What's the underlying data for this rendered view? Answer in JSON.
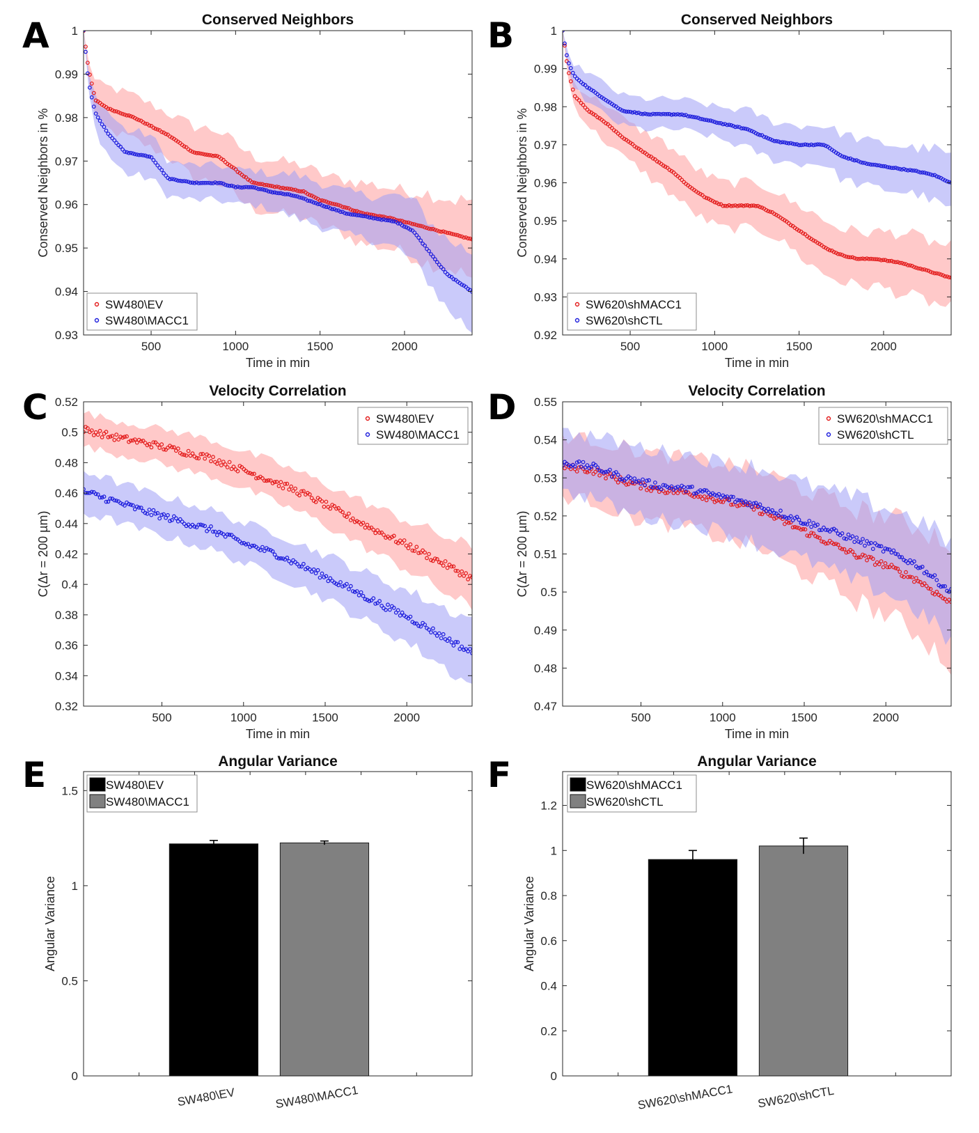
{
  "chart_data": [
    {
      "id": "A",
      "type": "scatter",
      "panel_letter": "A",
      "title": "Conserved Neighbors",
      "xlabel": "Time in min",
      "ylabel": "Conserved Neighbors in %",
      "xlim": [
        100,
        2400
      ],
      "ylim": [
        0.93,
        1.0
      ],
      "xticks": [
        500,
        1000,
        1500,
        2000
      ],
      "yticks": [
        0.93,
        0.94,
        0.95,
        0.96,
        0.97,
        0.98,
        0.99,
        1
      ],
      "ytick_labels": [
        "0.93",
        "0.94",
        "0.95",
        "0.96",
        "0.97",
        "0.98",
        "0.99",
        "1"
      ],
      "legend_position": "bottom-left",
      "series": [
        {
          "name": "SW480\\EV",
          "color": "#e31a1a",
          "band_color": "#ff9c9c",
          "x": [
            100,
            130,
            170,
            250,
            400,
            600,
            750,
            900,
            1000,
            1100,
            1250,
            1400,
            1500,
            1600,
            1750,
            1900,
            2000,
            2100,
            2200,
            2300,
            2400
          ],
          "y": [
            1.0,
            0.991,
            0.984,
            0.982,
            0.98,
            0.976,
            0.972,
            0.971,
            0.968,
            0.965,
            0.964,
            0.963,
            0.961,
            0.96,
            0.958,
            0.957,
            0.956,
            0.955,
            0.954,
            0.953,
            0.952
          ],
          "err": [
            0.0,
            0.002,
            0.004,
            0.005,
            0.005,
            0.005,
            0.006,
            0.006,
            0.006,
            0.006,
            0.006,
            0.006,
            0.006,
            0.006,
            0.007,
            0.007,
            0.007,
            0.008,
            0.008,
            0.008,
            0.009
          ]
        },
        {
          "name": "SW480\\MACC1",
          "color": "#1a1adc",
          "band_color": "#9e9ef5",
          "x": [
            100,
            130,
            170,
            250,
            350,
            500,
            600,
            750,
            900,
            1000,
            1100,
            1200,
            1350,
            1500,
            1650,
            1800,
            1950,
            2050,
            2150,
            2250,
            2400
          ],
          "y": [
            1.0,
            0.988,
            0.981,
            0.976,
            0.972,
            0.971,
            0.966,
            0.965,
            0.965,
            0.964,
            0.964,
            0.963,
            0.962,
            0.96,
            0.958,
            0.957,
            0.956,
            0.954,
            0.949,
            0.944,
            0.94
          ],
          "err": [
            0.0,
            0.002,
            0.004,
            0.005,
            0.005,
            0.005,
            0.004,
            0.004,
            0.004,
            0.004,
            0.004,
            0.004,
            0.005,
            0.005,
            0.005,
            0.005,
            0.006,
            0.007,
            0.007,
            0.008,
            0.009
          ]
        }
      ]
    },
    {
      "id": "B",
      "type": "scatter",
      "panel_letter": "B",
      "title": "Conserved Neighbors",
      "xlabel": "Time in min",
      "ylabel": "Conserved Neighbors in %",
      "xlim": [
        100,
        2400
      ],
      "ylim": [
        0.92,
        1.0
      ],
      "xticks": [
        500,
        1000,
        1500,
        2000
      ],
      "yticks": [
        0.92,
        0.93,
        0.94,
        0.95,
        0.96,
        0.97,
        0.98,
        0.99,
        1
      ],
      "ytick_labels": [
        "0.92",
        "0.93",
        "0.94",
        "0.95",
        "0.96",
        "0.97",
        "0.98",
        "0.99",
        "1"
      ],
      "legend_position": "bottom-left",
      "series": [
        {
          "name": "SW620\\shMACC1",
          "color": "#e31a1a",
          "band_color": "#ff9c9c",
          "x": [
            100,
            130,
            170,
            250,
            350,
            450,
            550,
            650,
            750,
            850,
            950,
            1050,
            1150,
            1250,
            1350,
            1450,
            1550,
            1650,
            1750,
            1850,
            1950,
            2100,
            2250,
            2400
          ],
          "y": [
            1.0,
            0.99,
            0.983,
            0.979,
            0.976,
            0.972,
            0.969,
            0.966,
            0.963,
            0.959,
            0.956,
            0.954,
            0.954,
            0.954,
            0.952,
            0.949,
            0.946,
            0.943,
            0.941,
            0.94,
            0.94,
            0.939,
            0.937,
            0.935
          ],
          "err": [
            0.0,
            0.002,
            0.003,
            0.004,
            0.005,
            0.005,
            0.005,
            0.006,
            0.006,
            0.006,
            0.006,
            0.006,
            0.006,
            0.006,
            0.006,
            0.006,
            0.007,
            0.007,
            0.007,
            0.007,
            0.007,
            0.008,
            0.008,
            0.008
          ]
        },
        {
          "name": "SW620\\shCTL",
          "color": "#1a1adc",
          "band_color": "#9e9ef5",
          "x": [
            100,
            130,
            170,
            250,
            350,
            450,
            600,
            800,
            1000,
            1200,
            1350,
            1500,
            1650,
            1750,
            1900,
            2050,
            2200,
            2300,
            2400
          ],
          "y": [
            1.0,
            0.992,
            0.988,
            0.985,
            0.982,
            0.979,
            0.978,
            0.978,
            0.976,
            0.974,
            0.971,
            0.97,
            0.97,
            0.967,
            0.965,
            0.964,
            0.963,
            0.962,
            0.96
          ],
          "err": [
            0.0,
            0.002,
            0.003,
            0.004,
            0.004,
            0.004,
            0.004,
            0.004,
            0.004,
            0.005,
            0.005,
            0.005,
            0.005,
            0.006,
            0.006,
            0.006,
            0.006,
            0.007,
            0.007
          ]
        }
      ]
    },
    {
      "id": "C",
      "type": "scatter",
      "panel_letter": "C",
      "title": "Velocity Correlation",
      "xlabel": "Time in min",
      "ylabel": "C(Δr = 200 µm)",
      "xlim": [
        20,
        2400
      ],
      "ylim": [
        0.32,
        0.52
      ],
      "xticks": [
        500,
        1000,
        1500,
        2000
      ],
      "yticks": [
        0.32,
        0.34,
        0.36,
        0.38,
        0.4,
        0.42,
        0.44,
        0.46,
        0.48,
        0.5,
        0.52
      ],
      "ytick_labels": [
        "0.32",
        "0.34",
        "0.36",
        "0.38",
        "0.4",
        "0.42",
        "0.44",
        "0.46",
        "0.48",
        "0.5",
        "0.52"
      ],
      "legend_position": "top-right",
      "series": [
        {
          "name": "SW480\\EV",
          "color": "#e31a1a",
          "band_color": "#ff9c9c",
          "x": [
            20,
            200,
            400,
            600,
            800,
            1000,
            1200,
            1400,
            1600,
            1800,
            2000,
            2200,
            2400
          ],
          "y": [
            0.502,
            0.497,
            0.493,
            0.488,
            0.483,
            0.475,
            0.467,
            0.458,
            0.447,
            0.436,
            0.426,
            0.415,
            0.404
          ],
          "err": [
            0.011,
            0.011,
            0.011,
            0.012,
            0.012,
            0.012,
            0.013,
            0.013,
            0.014,
            0.015,
            0.016,
            0.018,
            0.02
          ]
        },
        {
          "name": "SW480\\MACC1",
          "color": "#1a1adc",
          "band_color": "#9e9ef5",
          "x": [
            20,
            200,
            400,
            600,
            800,
            1000,
            1200,
            1400,
            1600,
            1800,
            2000,
            2200,
            2400
          ],
          "y": [
            0.461,
            0.455,
            0.448,
            0.442,
            0.436,
            0.427,
            0.42,
            0.41,
            0.4,
            0.389,
            0.379,
            0.367,
            0.355
          ],
          "err": [
            0.014,
            0.013,
            0.013,
            0.013,
            0.013,
            0.013,
            0.014,
            0.014,
            0.015,
            0.016,
            0.017,
            0.019,
            0.022
          ]
        }
      ]
    },
    {
      "id": "D",
      "type": "scatter",
      "panel_letter": "D",
      "title": "Velocity Correlation",
      "xlabel": "Time in min",
      "ylabel": "C(Δr = 200 µm)",
      "xlim": [
        20,
        2400
      ],
      "ylim": [
        0.47,
        0.55
      ],
      "xticks": [
        500,
        1000,
        1500,
        2000
      ],
      "yticks": [
        0.47,
        0.48,
        0.49,
        0.5,
        0.51,
        0.52,
        0.53,
        0.54,
        0.55
      ],
      "ytick_labels": [
        "0.47",
        "0.48",
        "0.49",
        "0.5",
        "0.51",
        "0.52",
        "0.53",
        "0.54",
        "0.55"
      ],
      "legend_position": "top-right",
      "series": [
        {
          "name": "SW620\\shMACC1",
          "color": "#e31a1a",
          "band_color": "#ff9c9c",
          "x": [
            20,
            200,
            400,
            600,
            800,
            1000,
            1200,
            1400,
            1600,
            1800,
            2000,
            2200,
            2400
          ],
          "y": [
            0.533,
            0.532,
            0.529,
            0.527,
            0.526,
            0.524,
            0.522,
            0.518,
            0.514,
            0.51,
            0.507,
            0.503,
            0.497
          ],
          "err": [
            0.008,
            0.008,
            0.009,
            0.009,
            0.009,
            0.01,
            0.01,
            0.011,
            0.011,
            0.012,
            0.013,
            0.014,
            0.016
          ]
        },
        {
          "name": "SW620\\shCTL",
          "color": "#1a1adc",
          "band_color": "#9e9ef5",
          "x": [
            20,
            200,
            400,
            600,
            800,
            1000,
            1200,
            1400,
            1600,
            1800,
            2000,
            2200,
            2400
          ],
          "y": [
            0.534,
            0.533,
            0.53,
            0.528,
            0.527,
            0.525,
            0.523,
            0.52,
            0.517,
            0.514,
            0.511,
            0.507,
            0.5
          ],
          "err": [
            0.008,
            0.008,
            0.009,
            0.009,
            0.009,
            0.009,
            0.01,
            0.01,
            0.01,
            0.011,
            0.011,
            0.012,
            0.013
          ]
        }
      ]
    },
    {
      "id": "E",
      "type": "bar",
      "panel_letter": "E",
      "title": "Angular Variance",
      "xlabel": "",
      "ylabel": "Angular Variance",
      "ylim": [
        0,
        1.6
      ],
      "yticks": [
        0,
        0.5,
        1,
        1.5
      ],
      "ytick_labels": [
        "0",
        "0.5",
        "1",
        "1.5"
      ],
      "categories": [
        "SW480\\EV",
        "SW480\\MACC1"
      ],
      "values": [
        1.22,
        1.225
      ],
      "errors": [
        0.018,
        0.01
      ],
      "colors": [
        "#000000",
        "#808080"
      ],
      "legend_position": "top-left"
    },
    {
      "id": "F",
      "type": "bar",
      "panel_letter": "F",
      "title": "Angular Variance",
      "xlabel": "",
      "ylabel": "Angular Variance",
      "ylim": [
        0,
        1.35
      ],
      "yticks": [
        0,
        0.2,
        0.4,
        0.6,
        0.8,
        1,
        1.2
      ],
      "ytick_labels": [
        "0",
        "0.2",
        "0.4",
        "0.6",
        "0.8",
        "1",
        "1.2"
      ],
      "categories": [
        "SW620\\shMACC1",
        "SW620\\shCTL"
      ],
      "values": [
        0.96,
        1.02
      ],
      "errors": [
        0.04,
        0.035
      ],
      "colors": [
        "#000000",
        "#808080"
      ],
      "legend_position": "top-left"
    }
  ]
}
